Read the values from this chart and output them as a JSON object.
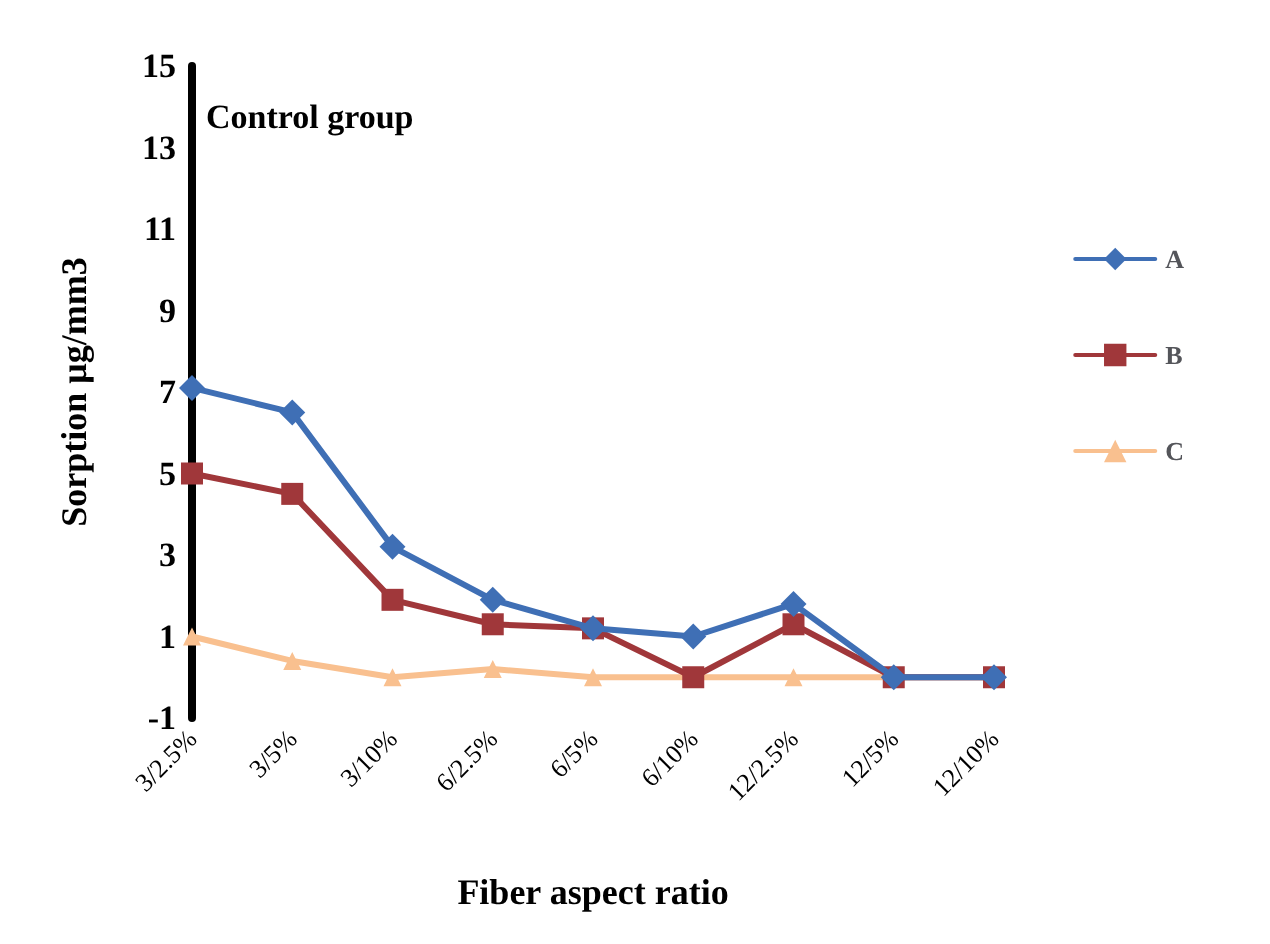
{
  "chart_data": {
    "type": "line",
    "xlabel": "Fiber aspect ratio",
    "ylabel": "Sorption μg/mm3",
    "annotations": [
      "Control group"
    ],
    "categories": [
      "3/2.5%",
      "3/5%",
      "3/10%",
      "6/2.5%",
      "6/5%",
      "6/10%",
      "12/2.5%",
      "12/5%",
      "12/10%"
    ],
    "series": [
      {
        "name": "A",
        "color": "#3f6fb5",
        "marker": "diamond",
        "values": [
          7.1,
          6.5,
          3.2,
          1.9,
          1.2,
          1.0,
          1.8,
          0,
          0
        ]
      },
      {
        "name": "B",
        "color": "#a0373a",
        "marker": "square",
        "values": [
          5.0,
          4.5,
          1.9,
          1.3,
          1.2,
          0,
          1.3,
          0,
          0
        ]
      },
      {
        "name": "C",
        "color": "#f9c08f",
        "marker": "triangle",
        "values": [
          1.0,
          0.4,
          0,
          0.2,
          0,
          0,
          0,
          0,
          0
        ]
      }
    ],
    "ylim": [
      -1,
      15
    ],
    "yticks": [
      -1,
      1,
      3,
      5,
      7,
      9,
      11,
      13,
      15
    ],
    "grid": false,
    "legend": "right",
    "line_style": "solid"
  }
}
